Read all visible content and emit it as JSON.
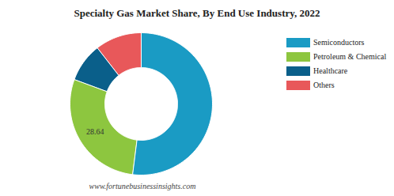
{
  "chart_data": {
    "type": "pie",
    "title": "Specialty Gas Market Share, By End Use Industry, 2022",
    "categories": [
      "Semiconductors",
      "Petroleum & Chemical",
      "Healthcare",
      "Others"
    ],
    "values": [
      52.0,
      28.64,
      8.86,
      10.5
    ],
    "value_labels": [
      null,
      "28.64",
      null,
      null
    ],
    "colors": [
      "#1a9bc4",
      "#8dc63f",
      "#0a5f8a",
      "#e8585a"
    ],
    "legend": "right",
    "source": "www.fortunebusinessinsights.com"
  }
}
